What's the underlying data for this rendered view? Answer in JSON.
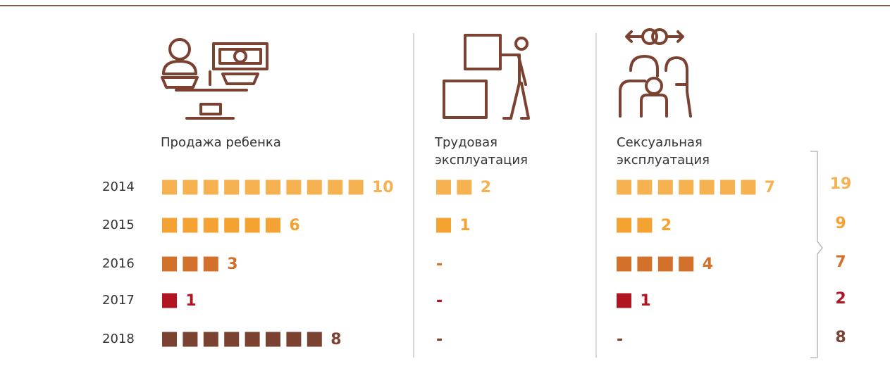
{
  "chart_data": {
    "type": "pictogram",
    "categories": [
      "2014",
      "2015",
      "2016",
      "2017",
      "2018"
    ],
    "colors": [
      "#f6b151",
      "#f4a232",
      "#d3712a",
      "#b01521",
      "#7b4231"
    ],
    "series": [
      {
        "name": "Продажа ребенка",
        "values": [
          10,
          6,
          3,
          1,
          8
        ]
      },
      {
        "name": "Трудовая эксплуатация",
        "values": [
          2,
          1,
          0,
          0,
          0
        ],
        "value_labels": [
          "2",
          "1",
          "-",
          "-",
          "-"
        ]
      },
      {
        "name": "Сексуальная эксплуатация",
        "values": [
          7,
          2,
          4,
          1,
          0
        ],
        "value_labels": [
          "7",
          "2",
          "4",
          "1",
          "-"
        ]
      }
    ],
    "totals": [
      19,
      9,
      7,
      2,
      8
    ]
  }
}
